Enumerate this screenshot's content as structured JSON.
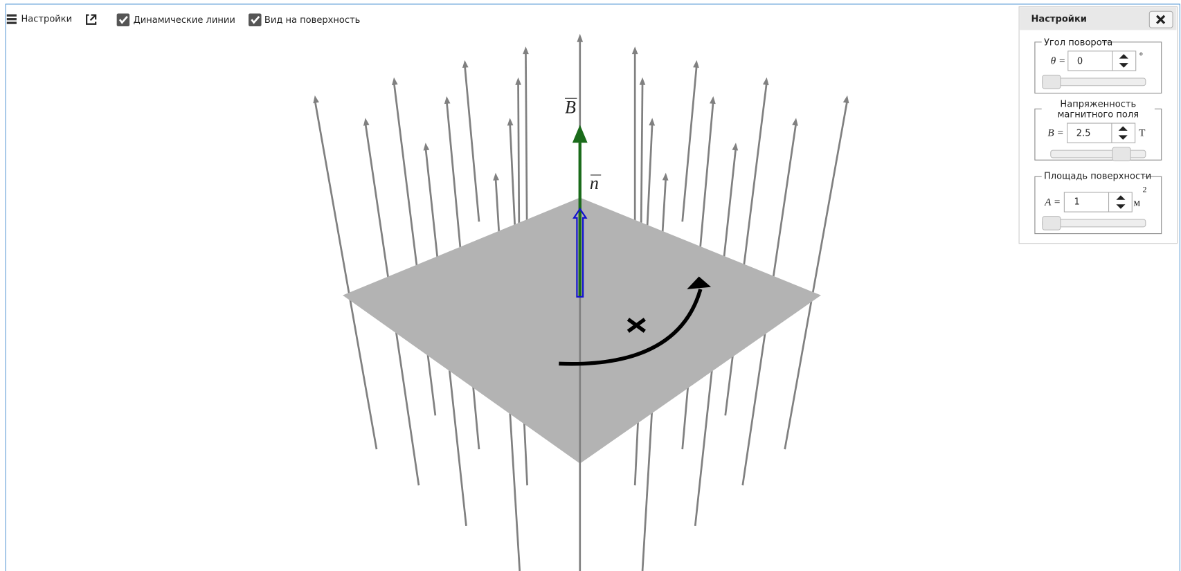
{
  "toolbar": {
    "settings": "Настройки",
    "dynamic_lines": {
      "label": "Динамические линии",
      "checked": true
    },
    "surface_view": {
      "label": "Вид на поверхность",
      "checked": true
    }
  },
  "scene": {
    "field_label": "B",
    "normal_label": "n"
  },
  "panel": {
    "title": "Настройки",
    "angle": {
      "legend": "Угол поворота",
      "symbol": "θ =",
      "value": 0,
      "unit": "°"
    },
    "field": {
      "legend": [
        "Напряженность",
        "магнитного поля"
      ],
      "symbol": "B =",
      "value": 2.5,
      "unit": "T"
    },
    "area": {
      "legend": "Площадь поверхности",
      "symbol": "A =",
      "value": 1,
      "unit": "м",
      "exponent": 2
    }
  }
}
